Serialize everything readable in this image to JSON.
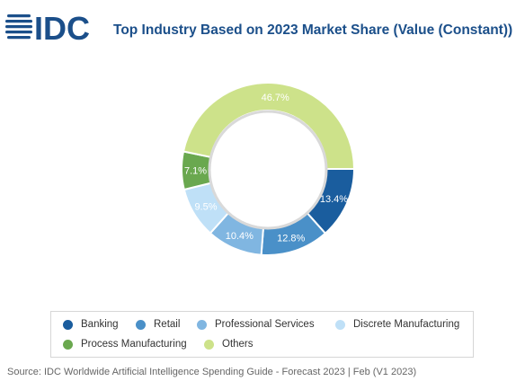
{
  "header": {
    "logo_text": "IDC",
    "title": "Top Industry Based on 2023 Market Share (Value (Constant))"
  },
  "colors": {
    "brand": "#1b4f8a",
    "banking": "#1a5d9e",
    "retail": "#4a90c8",
    "professional_services": "#80b6e1",
    "discrete_manufacturing": "#bfe0f7",
    "process_manufacturing": "#6aa84f",
    "others": "#cde28a"
  },
  "chart_data": {
    "type": "pie",
    "donut": true,
    "title": "Top Industry Based on 2023 Market Share (Value (Constant))",
    "categories": [
      "Banking",
      "Retail",
      "Professional Services",
      "Discrete Manufacturing",
      "Process Manufacturing",
      "Others"
    ],
    "values": [
      13.4,
      12.8,
      10.4,
      9.5,
      7.1,
      46.7
    ],
    "labels": [
      "13.4%",
      "12.8%",
      "10.4%",
      "9.5%",
      "7.1%",
      "46.7%"
    ],
    "unit": "%",
    "legend_position": "bottom"
  },
  "legend": {
    "items": [
      {
        "label": "Banking",
        "color": "#1a5d9e"
      },
      {
        "label": "Retail",
        "color": "#4a90c8"
      },
      {
        "label": "Professional Services",
        "color": "#80b6e1"
      },
      {
        "label": "Discrete Manufacturing",
        "color": "#bfe0f7"
      },
      {
        "label": "Process Manufacturing",
        "color": "#6aa84f"
      },
      {
        "label": "Others",
        "color": "#cde28a"
      }
    ]
  },
  "footer": {
    "source": "Source: IDC Worldwide Artificial Intelligence Spending Guide - Forecast 2023 | Feb (V1 2023)"
  }
}
